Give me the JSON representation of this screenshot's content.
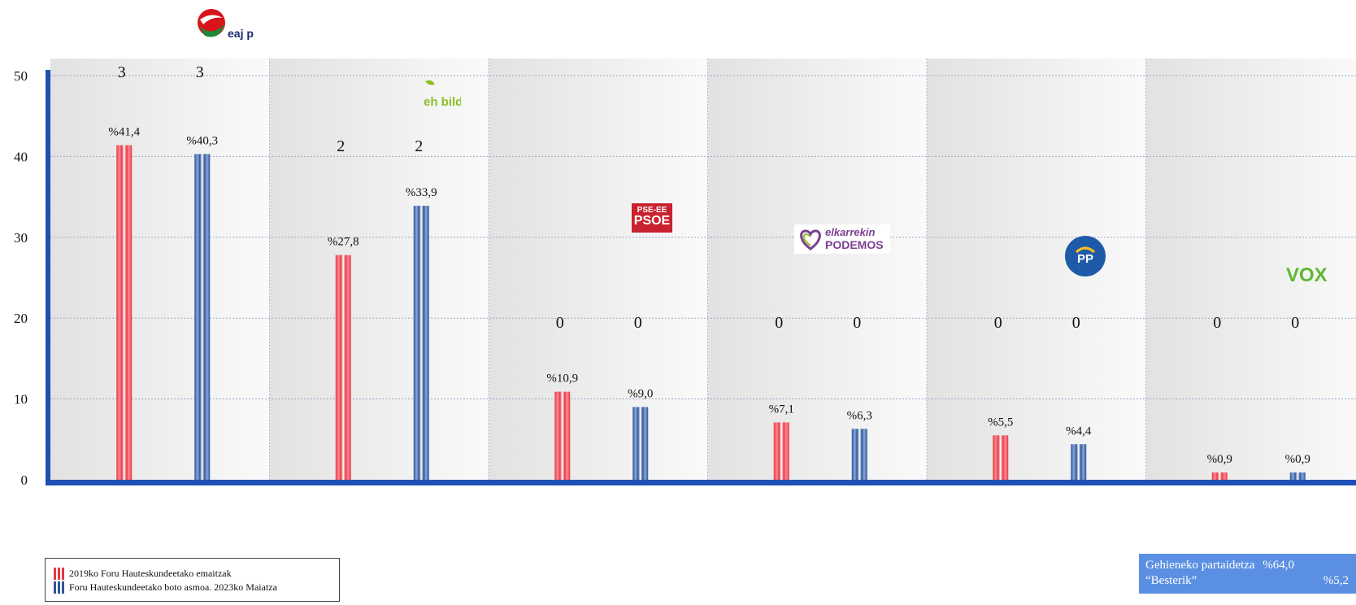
{
  "chart_data": {
    "type": "bar",
    "ylim": [
      0,
      50
    ],
    "yticks": [
      "0",
      "10",
      "20",
      "30",
      "40",
      "50"
    ],
    "grid": true,
    "categories": [
      "EAJ-PNV",
      "EH Bildu",
      "PSE-EE PSOE",
      "Elkarrekin Podemos",
      "PP",
      "VOX"
    ],
    "series": [
      {
        "name": "2019ko Foru Hauteskundeetako emaitzak",
        "color": "#e63946",
        "values": [
          41.4,
          27.8,
          10.9,
          7.1,
          5.5,
          0.9
        ],
        "labels": [
          "%41,4",
          "%27,8",
          "%10,9",
          "%7,1",
          "%5,5",
          "%0,9"
        ],
        "seats": [
          "3",
          "2",
          "0",
          "0",
          "0",
          "0"
        ]
      },
      {
        "name": "Foru Hauteskundeetako boto asmoa. 2023ko Maiatza",
        "color": "#2f5597",
        "values": [
          40.3,
          33.9,
          9.0,
          6.3,
          4.4,
          0.9
        ],
        "labels": [
          "%40,3",
          "%33,9",
          "%9,0",
          "%6,3",
          "%4,4",
          "%0,9"
        ],
        "seats": [
          "3",
          "2",
          "0",
          "0",
          "0",
          "0"
        ]
      }
    ]
  },
  "logos": {
    "pnv": {
      "text": "eaj pnv",
      "icon": "eaj-pnv-logo"
    },
    "bildu": {
      "text": "eh bildu",
      "icon": "eh-bildu-logo"
    },
    "psoe": {
      "line1": "PSE-EE",
      "line2": "PSOE",
      "icon": "pse-ee-psoe-logo"
    },
    "podemos": {
      "line1": "elkarrekin",
      "line2": "PODEMOS",
      "icon": "elkarrekin-podemos-logo"
    },
    "pp": {
      "text": "PP",
      "icon": "pp-logo"
    },
    "vox": {
      "text": "VOX",
      "icon": "vox-logo"
    }
  },
  "legend": {
    "item1": "2019ko Foru Hauteskundeetako emaitzak",
    "item2": "Foru Hauteskundeetako boto asmoa. 2023ko Maiatza"
  },
  "info": {
    "participation_label": "Gehieneko partaidetza",
    "participation_value": "%64,0",
    "others_label": "“Besterik”",
    "others_value": "%5,2"
  }
}
